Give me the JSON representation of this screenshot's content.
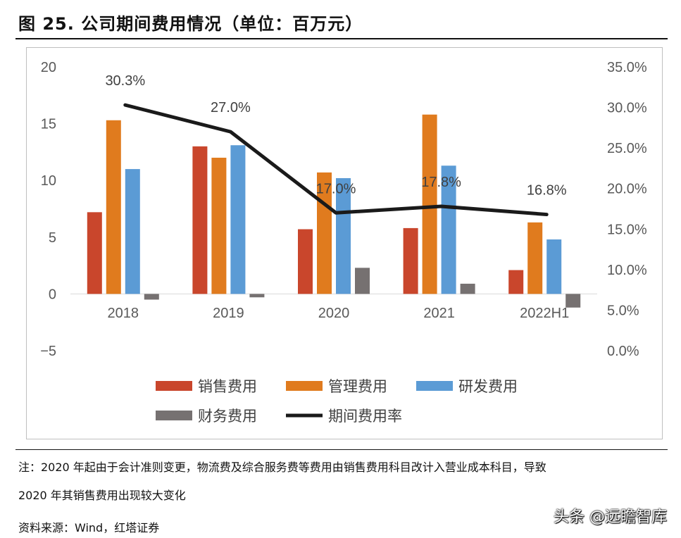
{
  "header": {
    "title": "图 25. 公司期间费用情况（单位：百万元）"
  },
  "chart_data": {
    "type": "bar",
    "categories": [
      "2018",
      "2019",
      "2020",
      "2021",
      "2022H1"
    ],
    "series": [
      {
        "name": "销售费用",
        "color": "#C9462C",
        "values": [
          7.2,
          13.0,
          5.7,
          5.8,
          2.1
        ]
      },
      {
        "name": "管理费用",
        "color": "#E07B1E",
        "values": [
          15.3,
          12.0,
          10.7,
          15.8,
          6.3
        ]
      },
      {
        "name": "研发费用",
        "color": "#5B9BD5",
        "values": [
          11.0,
          13.1,
          10.2,
          11.3,
          4.8
        ]
      },
      {
        "name": "财务费用",
        "color": "#767171",
        "values": [
          -0.5,
          -0.3,
          2.3,
          0.9,
          -1.2
        ]
      }
    ],
    "line_series": {
      "name": "期间费用率",
      "color": "#1A1A1A",
      "axis": "right",
      "values": [
        30.3,
        27.0,
        17.0,
        17.8,
        16.8
      ],
      "labels": [
        "30.3%",
        "27.0%",
        "17.0%",
        "17.8%",
        "16.8%"
      ]
    },
    "left_axis": {
      "ylim": [
        -5,
        20
      ],
      "ticks": [
        20,
        15,
        10,
        5,
        0,
        -5
      ],
      "tick_labels": [
        "20",
        "15",
        "10",
        "5",
        "0",
        "−5"
      ]
    },
    "right_axis": {
      "ylim": [
        0,
        35
      ],
      "ticks": [
        35,
        30,
        25,
        20,
        15,
        10,
        5,
        0
      ],
      "tick_labels": [
        "35.0%",
        "30.0%",
        "25.0%",
        "20.0%",
        "15.0%",
        "10.0%",
        "5.0%",
        "0.0%"
      ]
    },
    "legend": [
      "销售费用",
      "管理费用",
      "研发费用",
      "财务费用",
      "期间费用率"
    ],
    "legend_position": "bottom"
  },
  "footer": {
    "note_line1": "注：2020 年起由于会计准则变更，物流费及综合服务费等费用由销售费用科目改计入营业成本科目，导致",
    "note_line2": "2020 年其销售费用出现较大变化",
    "source": "资料来源：Wind，红塔证券",
    "watermark": "头条 @远瞻智库"
  }
}
